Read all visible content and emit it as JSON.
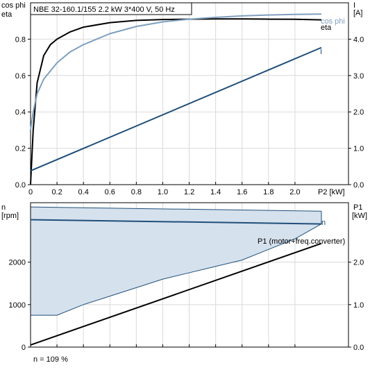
{
  "colors": {
    "eta": "#000000",
    "cos_phi": "#7f9fbf",
    "current": "#1f4e79",
    "speed": "#1f4e79",
    "p1": "#000000",
    "band_fill": "#d5e1ed",
    "band_stroke": "#1f4e79"
  },
  "footer": {
    "speed_note": "n = 109 %"
  },
  "chart_data": [
    {
      "type": "line",
      "title": "NBE 32-160.1/155   2.2 kW   3*400 V, 50 Hz",
      "ylabel_left": [
        "cos phi",
        "eta"
      ],
      "ylabel_right": [
        "I",
        "[A]"
      ],
      "xlabel": "P2 [kW]",
      "xlim": [
        0,
        2.2
      ],
      "ylim_left": [
        0,
        1.0
      ],
      "ylim_right": [
        0,
        5.0
      ],
      "x_ticks": [
        "0",
        "0.2",
        "0.4",
        "0.6",
        "0.8",
        "1.0",
        "1.2",
        "1.4",
        "1.6",
        "1.8",
        "2.0"
      ],
      "x_tick_values": [
        0,
        0.2,
        0.4,
        0.6,
        0.8,
        1.0,
        1.2,
        1.4,
        1.6,
        1.8,
        2.0
      ],
      "y_left_ticks": [
        "0.0",
        "0.2",
        "0.4",
        "0.6",
        "0.8"
      ],
      "y_left_tick_values": [
        0,
        0.2,
        0.4,
        0.6,
        0.8
      ],
      "y_right_ticks": [
        "0.0",
        "1.0",
        "2.0",
        "3.0",
        "4.0"
      ],
      "y_right_tick_values": [
        0,
        1,
        2,
        3,
        4
      ],
      "series": [
        {
          "name": "eta",
          "axis": "left",
          "color_key": "eta",
          "x": [
            0,
            0.02,
            0.05,
            0.1,
            0.15,
            0.2,
            0.3,
            0.4,
            0.6,
            0.8,
            1.0,
            1.2,
            1.4,
            1.6,
            1.8,
            2.0,
            2.2
          ],
          "y": [
            0,
            0.3,
            0.56,
            0.71,
            0.77,
            0.8,
            0.84,
            0.866,
            0.891,
            0.903,
            0.908,
            0.91,
            0.911,
            0.911,
            0.91,
            0.909,
            0.906
          ]
        },
        {
          "name": "cos phi",
          "axis": "left",
          "color_key": "cos_phi",
          "x": [
            0,
            0.02,
            0.05,
            0.1,
            0.2,
            0.3,
            0.4,
            0.6,
            0.8,
            1.0,
            1.2,
            1.4,
            1.6,
            1.8,
            2.0,
            2.2
          ],
          "y": [
            0.3,
            0.4,
            0.5,
            0.58,
            0.67,
            0.73,
            0.77,
            0.83,
            0.87,
            0.895,
            0.91,
            0.92,
            0.928,
            0.933,
            0.936,
            0.938
          ]
        },
        {
          "name": "I",
          "axis": "right",
          "color_key": "current",
          "x": [
            0,
            2.2
          ],
          "y": [
            0.38,
            3.77
          ]
        }
      ]
    },
    {
      "type": "area",
      "ylabel_left": [
        "n",
        "[rpm]"
      ],
      "ylabel_right": [
        "P1",
        "[kW]"
      ],
      "xlim": [
        0,
        2.2
      ],
      "ylim_left": [
        0,
        3400
      ],
      "ylim_right": [
        0,
        3.4
      ],
      "x_tick_values": [
        0,
        0.2,
        0.4,
        0.6,
        0.8,
        1.0,
        1.2,
        1.4,
        1.6,
        1.8,
        2.0
      ],
      "y_left_ticks": [
        "0",
        "1000",
        "2000"
      ],
      "y_left_tick_values": [
        0,
        1000,
        2000
      ],
      "y_right_ticks": [
        "0.0",
        "1.0",
        "2.0"
      ],
      "y_right_tick_values": [
        0,
        1,
        2
      ],
      "band": {
        "upper": {
          "x": [
            0,
            2.2
          ],
          "y": [
            3300,
            3200
          ]
        },
        "lower": {
          "x": [
            0,
            0.2,
            0.4,
            0.6,
            0.8,
            1.0,
            1.2,
            1.4,
            1.6,
            1.8,
            2.0,
            2.2
          ],
          "y": [
            750,
            750,
            1000,
            1200,
            1400,
            1600,
            1750,
            1900,
            2050,
            2300,
            2550,
            2900
          ]
        }
      },
      "series": [
        {
          "name": "n",
          "axis": "left",
          "color_key": "speed",
          "x": [
            0,
            2.2
          ],
          "y": [
            3000,
            2900
          ]
        },
        {
          "name": "P1 (motor+freq.converter)",
          "axis": "right",
          "color_key": "p1",
          "x": [
            0,
            2.2
          ],
          "y": [
            0.05,
            2.44
          ]
        }
      ]
    }
  ]
}
